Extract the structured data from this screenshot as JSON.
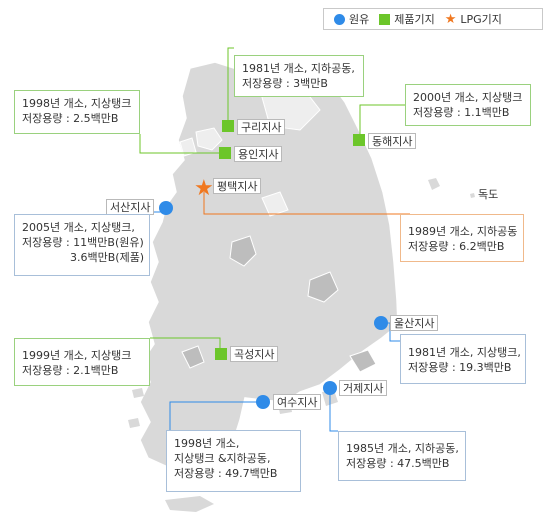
{
  "legend": {
    "crude": "원유",
    "product": "제품기지",
    "lpg": "LPG기지"
  },
  "colors": {
    "crude": "#2f8be8",
    "product": "#6cc62a",
    "lpg": "#f07820",
    "land": "#d9d9d9",
    "province": "#eeeeee",
    "border": "#ffffff"
  },
  "bases": {
    "guri": {
      "name": "구리지사",
      "type": "product",
      "info": [
        "1981년 개소, 지하공동,",
        "저장용량 : 3백만B"
      ]
    },
    "yongin": {
      "name": "용인지사",
      "type": "product",
      "info": [
        "1998년 개소, 지상탱크",
        "저장용량 : 2.5백만B"
      ]
    },
    "donghae": {
      "name": "동해지사",
      "type": "product",
      "info": [
        "2000년 개소, 지상탱크",
        "저장용량 : 1.1백만B"
      ]
    },
    "pyeongtaek": {
      "name": "평택지사",
      "type": "lpg",
      "info": [
        "1989년 개소, 지하공동",
        "저장용량 : 6.2백만B"
      ]
    },
    "seosan": {
      "name": "서산지사",
      "type": "crude",
      "info": [
        "2005년 개소, 지상탱크,",
        "저장용량 : 11백만B(원유)",
        "3.6백만B(제품)"
      ]
    },
    "gokseong": {
      "name": "곡성지사",
      "type": "product",
      "info": [
        "1999년 개소, 지상탱크",
        "저장용량 : 2.1백만B"
      ]
    },
    "ulsan": {
      "name": "울산지사",
      "type": "crude",
      "info": [
        "1981년 개소, 지상탱크,",
        "저장용량 : 19.3백만B"
      ]
    },
    "geoje": {
      "name": "거제지사",
      "type": "crude",
      "info": [
        "1985년 개소, 지하공동,",
        "저장용량 : 47.5백만B"
      ]
    },
    "yeosu": {
      "name": "여수지사",
      "type": "crude",
      "info": [
        "1998년 개소,",
        "지상탱크 &지하공동,",
        "저장용량 : 49.7백만B"
      ]
    }
  },
  "dokdo": "독도"
}
